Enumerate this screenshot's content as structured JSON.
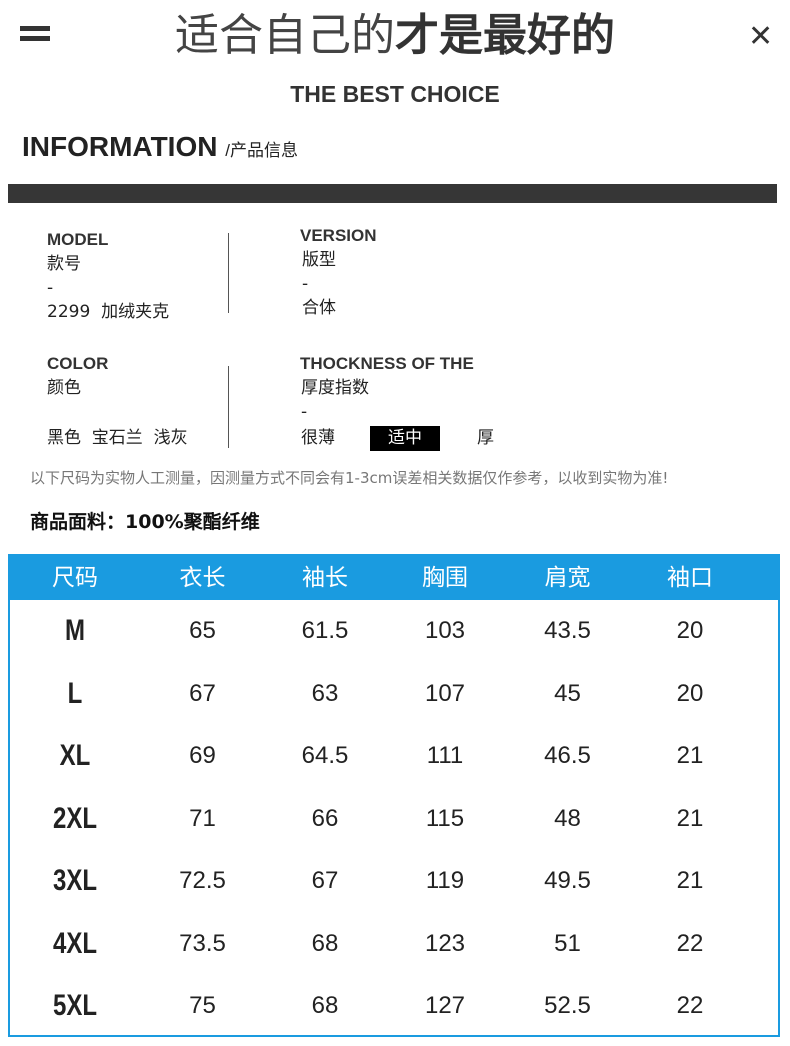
{
  "header": {
    "title_light": "适合自己的",
    "title_bold": "才是最好的",
    "subtitle": "THE BEST CHOICE"
  },
  "section": {
    "title": "INFORMATION",
    "subtitle": "/产品信息"
  },
  "model": {
    "label": "MODEL",
    "cn": "款号",
    "dash": "-",
    "value": "2299  加绒夹克"
  },
  "version": {
    "label": "VERSION",
    "cn": "版型",
    "dash": "-",
    "value": "合体"
  },
  "color": {
    "label": "COLOR",
    "cn": "颜色",
    "value": "黑色  宝石兰  浅灰"
  },
  "thickness": {
    "label": "THOCKNESS OF THE",
    "cn": "厚度指数",
    "dash": "-",
    "options": [
      "很薄",
      "适中",
      "厚"
    ],
    "selected": "适中"
  },
  "note": "以下尺码为实物人工测量，因测量方式不同会有1-3cm误差相关数据仅作参考，以收到实物为准!",
  "fabric": "商品面料：100%聚酯纤维",
  "table": {
    "accent": "#1a9be0",
    "headers": [
      "尺码",
      "衣长",
      "袖长",
      "胸围",
      "肩宽",
      "袖口"
    ],
    "rows": [
      [
        "M",
        "65",
        "61.5",
        "103",
        "43.5",
        "20"
      ],
      [
        "L",
        "67",
        "63",
        "107",
        "45",
        "20"
      ],
      [
        "XL",
        "69",
        "64.5",
        "111",
        "46.5",
        "21"
      ],
      [
        "2XL",
        "71",
        "66",
        "115",
        "48",
        "21"
      ],
      [
        "3XL",
        "72.5",
        "67",
        "119",
        "49.5",
        "21"
      ],
      [
        "4XL",
        "73.5",
        "68",
        "123",
        "51",
        "22"
      ],
      [
        "5XL",
        "75",
        "68",
        "127",
        "52.5",
        "22"
      ]
    ]
  }
}
